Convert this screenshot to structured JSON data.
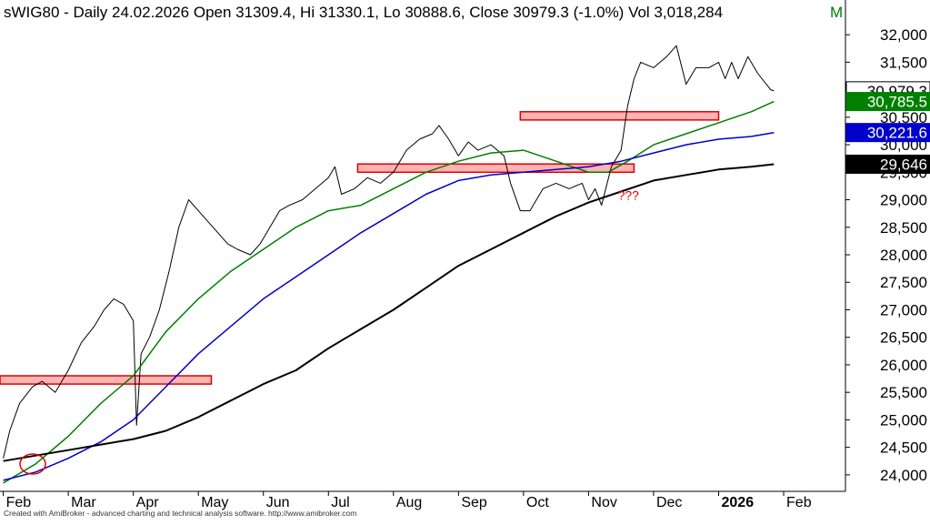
{
  "header": {
    "symbol": "sWIG80",
    "info": "- Daily 24.02.2026 Open 31309.4, Hi 31330.1, Lo 30888.6, Close 30979.3 (-1.0%) Vol 3,018,284",
    "flag": "M"
  },
  "footer": {
    "credit": "Created with AmiBroker - advanced charting and technical analysis software. http://www.amibroker.com"
  },
  "colors": {
    "price": "#000000",
    "ma_green": "#008000",
    "ma_blue": "#0000cc",
    "ma_black": "#000000",
    "annotation": "#e00000",
    "zone_fill": "#ffb3b3",
    "zone_stroke": "#e00000"
  },
  "chart_data": {
    "type": "line",
    "ylim": [
      23700,
      32300
    ],
    "y_ticks": [
      "24,000",
      "24,500",
      "25,000",
      "25,500",
      "26,000",
      "26,500",
      "27,000",
      "27,500",
      "28,000",
      "28,500",
      "29,000",
      "29,500",
      "30,000",
      "30,500",
      "31,000",
      "31,500",
      "32,000"
    ],
    "y_tick_values": [
      24000,
      24500,
      25000,
      25500,
      26000,
      26500,
      27000,
      27500,
      28000,
      28500,
      29000,
      29500,
      30000,
      30500,
      31000,
      31500,
      32000
    ],
    "x_tick_labels": [
      "Feb",
      "Mar",
      "Apr",
      "May",
      "Jun",
      "Jul",
      "Aug",
      "Sep",
      "Oct",
      "Nov",
      "Dec",
      "2026",
      "Feb"
    ],
    "x_tick_months": [
      1,
      2,
      3,
      4,
      5,
      6,
      7,
      8,
      9,
      10,
      11,
      12,
      13
    ],
    "x_month_range": [
      0.95,
      13.95
    ],
    "series": [
      {
        "key": "price",
        "points": [
          [
            1.0,
            24300
          ],
          [
            1.1,
            24800
          ],
          [
            1.25,
            25300
          ],
          [
            1.45,
            25600
          ],
          [
            1.6,
            25700
          ],
          [
            1.8,
            25500
          ],
          [
            2.0,
            25900
          ],
          [
            2.2,
            26400
          ],
          [
            2.4,
            26700
          ],
          [
            2.55,
            27000
          ],
          [
            2.7,
            27200
          ],
          [
            2.85,
            27100
          ],
          [
            3.0,
            26800
          ],
          [
            3.05,
            24900
          ],
          [
            3.12,
            26200
          ],
          [
            3.25,
            26500
          ],
          [
            3.4,
            27000
          ],
          [
            3.55,
            27700
          ],
          [
            3.7,
            28500
          ],
          [
            3.85,
            29000
          ],
          [
            4.0,
            28800
          ],
          [
            4.15,
            28600
          ],
          [
            4.3,
            28400
          ],
          [
            4.45,
            28200
          ],
          [
            4.6,
            28100
          ],
          [
            4.8,
            28000
          ],
          [
            4.95,
            28200
          ],
          [
            5.1,
            28500
          ],
          [
            5.25,
            28800
          ],
          [
            5.4,
            28900
          ],
          [
            5.6,
            29000
          ],
          [
            5.8,
            29200
          ],
          [
            6.0,
            29400
          ],
          [
            6.1,
            29600
          ],
          [
            6.2,
            29100
          ],
          [
            6.4,
            29200
          ],
          [
            6.6,
            29400
          ],
          [
            6.8,
            29300
          ],
          [
            7.0,
            29500
          ],
          [
            7.2,
            29900
          ],
          [
            7.4,
            30100
          ],
          [
            7.6,
            30200
          ],
          [
            7.7,
            30350
          ],
          [
            7.85,
            30100
          ],
          [
            8.0,
            29800
          ],
          [
            8.15,
            30050
          ],
          [
            8.3,
            29900
          ],
          [
            8.5,
            30000
          ],
          [
            8.7,
            29800
          ],
          [
            8.8,
            29300
          ],
          [
            8.95,
            28800
          ],
          [
            9.1,
            28800
          ],
          [
            9.3,
            29200
          ],
          [
            9.5,
            29300
          ],
          [
            9.7,
            29200
          ],
          [
            9.9,
            29300
          ],
          [
            10.0,
            29000
          ],
          [
            10.1,
            29200
          ],
          [
            10.2,
            28900
          ],
          [
            10.35,
            29600
          ],
          [
            10.5,
            29900
          ],
          [
            10.6,
            30700
          ],
          [
            10.7,
            31200
          ],
          [
            10.8,
            31500
          ],
          [
            11.0,
            31400
          ],
          [
            11.2,
            31600
          ],
          [
            11.35,
            31800
          ],
          [
            11.5,
            31100
          ],
          [
            11.65,
            31400
          ],
          [
            11.85,
            31400
          ],
          [
            12.0,
            31500
          ],
          [
            12.1,
            31200
          ],
          [
            12.2,
            31500
          ],
          [
            12.3,
            31200
          ],
          [
            12.45,
            31600
          ],
          [
            12.6,
            31300
          ],
          [
            12.8,
            31000
          ],
          [
            12.85,
            30979.3
          ]
        ]
      },
      {
        "key": "ma_green",
        "points": [
          [
            1.0,
            23850
          ],
          [
            1.5,
            24200
          ],
          [
            2.0,
            24700
          ],
          [
            2.5,
            25300
          ],
          [
            3.0,
            25800
          ],
          [
            3.5,
            26600
          ],
          [
            4.0,
            27200
          ],
          [
            4.5,
            27700
          ],
          [
            5.0,
            28100
          ],
          [
            5.5,
            28500
          ],
          [
            6.0,
            28800
          ],
          [
            6.5,
            28900
          ],
          [
            7.0,
            29200
          ],
          [
            7.5,
            29500
          ],
          [
            8.0,
            29700
          ],
          [
            8.5,
            29850
          ],
          [
            9.0,
            29900
          ],
          [
            9.5,
            29700
          ],
          [
            10.0,
            29500
          ],
          [
            10.3,
            29500
          ],
          [
            10.6,
            29700
          ],
          [
            11.0,
            30000
          ],
          [
            11.5,
            30200
          ],
          [
            12.0,
            30400
          ],
          [
            12.5,
            30600
          ],
          [
            12.85,
            30785.5
          ]
        ]
      },
      {
        "key": "ma_blue",
        "points": [
          [
            1.0,
            23900
          ],
          [
            1.5,
            24050
          ],
          [
            2.0,
            24300
          ],
          [
            2.5,
            24600
          ],
          [
            3.0,
            25000
          ],
          [
            3.5,
            25600
          ],
          [
            4.0,
            26200
          ],
          [
            4.5,
            26700
          ],
          [
            5.0,
            27200
          ],
          [
            5.5,
            27600
          ],
          [
            6.0,
            28000
          ],
          [
            6.5,
            28400
          ],
          [
            7.0,
            28750
          ],
          [
            7.5,
            29100
          ],
          [
            8.0,
            29350
          ],
          [
            8.5,
            29450
          ],
          [
            9.0,
            29500
          ],
          [
            9.5,
            29550
          ],
          [
            10.0,
            29600
          ],
          [
            10.5,
            29700
          ],
          [
            11.0,
            29850
          ],
          [
            11.5,
            30000
          ],
          [
            12.0,
            30100
          ],
          [
            12.5,
            30150
          ],
          [
            12.85,
            30221.6
          ]
        ]
      },
      {
        "key": "ma_black",
        "points": [
          [
            1.0,
            24250
          ],
          [
            1.5,
            24350
          ],
          [
            2.0,
            24450
          ],
          [
            2.5,
            24550
          ],
          [
            3.0,
            24650
          ],
          [
            3.5,
            24800
          ],
          [
            4.0,
            25050
          ],
          [
            4.5,
            25350
          ],
          [
            5.0,
            25650
          ],
          [
            5.5,
            25900
          ],
          [
            6.0,
            26300
          ],
          [
            6.5,
            26650
          ],
          [
            7.0,
            27000
          ],
          [
            7.5,
            27400
          ],
          [
            8.0,
            27800
          ],
          [
            8.5,
            28100
          ],
          [
            9.0,
            28400
          ],
          [
            9.5,
            28700
          ],
          [
            10.0,
            28950
          ],
          [
            10.5,
            29150
          ],
          [
            11.0,
            29350
          ],
          [
            11.5,
            29450
          ],
          [
            12.0,
            29550
          ],
          [
            12.5,
            29600
          ],
          [
            12.85,
            29646
          ]
        ]
      }
    ],
    "last_values": [
      {
        "key": "price",
        "label": "30,979.3",
        "value": 30979.3
      },
      {
        "key": "ma_green",
        "label": "30,785.5",
        "value": 30785.5
      },
      {
        "key": "ma_blue",
        "label": "30,221.6",
        "value": 30221.6
      },
      {
        "key": "ma_black",
        "label": "29,646",
        "value": 29646
      }
    ],
    "zones": [
      {
        "x0": 0.95,
        "x1": 4.2,
        "y0": 25650,
        "y1": 25800
      },
      {
        "x0": 6.45,
        "x1": 10.7,
        "y0": 29500,
        "y1": 29650
      },
      {
        "x0": 8.95,
        "x1": 12.0,
        "y0": 30450,
        "y1": 30600
      }
    ],
    "annotations": {
      "question": "???",
      "question_at": [
        10.45,
        29000
      ]
    }
  }
}
